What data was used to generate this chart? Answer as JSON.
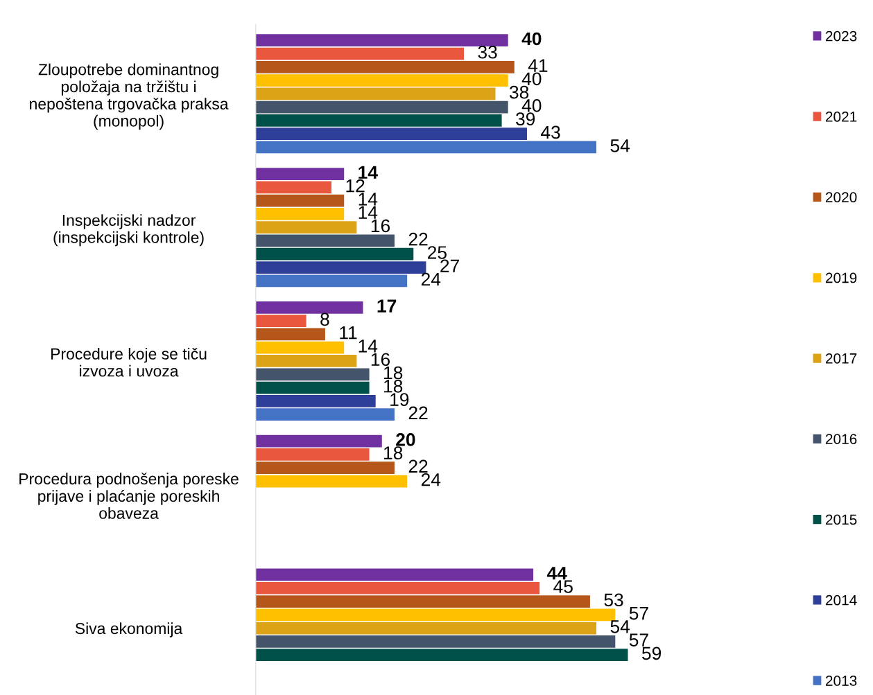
{
  "chart_data": {
    "type": "bar",
    "orientation": "horizontal",
    "data_labels": true,
    "grid": false,
    "legend": "right",
    "categories": [
      "Zloupotrebe dominantnog položaja na tržištu i nepoštena trgovačka praksa (monopol)",
      "Inspekcijski nadzor (inspekcijski kontrole)",
      "Procedure koje se tiču izvoza i uvoza",
      "Procedura podnošenja poreske prijave i plaćanje poreskih obaveza",
      "Siva ekonomija"
    ],
    "series": [
      {
        "name": "2023",
        "color": "#7030a0",
        "values": [
          40,
          14,
          17,
          20,
          44
        ]
      },
      {
        "name": "2021",
        "color": "#e9573f",
        "values": [
          33,
          12,
          8,
          18,
          45
        ]
      },
      {
        "name": "2020",
        "color": "#b5571a",
        "values": [
          41,
          14,
          11,
          22,
          53
        ]
      },
      {
        "name": "2019",
        "color": "#ffc000",
        "values": [
          40,
          14,
          14,
          24,
          57
        ]
      },
      {
        "name": "2017",
        "color": "#dca316",
        "values": [
          38,
          16,
          16,
          null,
          54
        ]
      },
      {
        "name": "2016",
        "color": "#44546a",
        "values": [
          40,
          22,
          18,
          null,
          57
        ]
      },
      {
        "name": "2015",
        "color": "#00504a",
        "values": [
          39,
          25,
          18,
          null,
          59
        ]
      },
      {
        "name": "2014",
        "color": "#2e3f9a",
        "values": [
          43,
          27,
          19,
          null,
          null
        ]
      },
      {
        "name": "2013",
        "color": "#4472c4",
        "values": [
          54,
          24,
          22,
          null,
          null
        ]
      }
    ]
  }
}
